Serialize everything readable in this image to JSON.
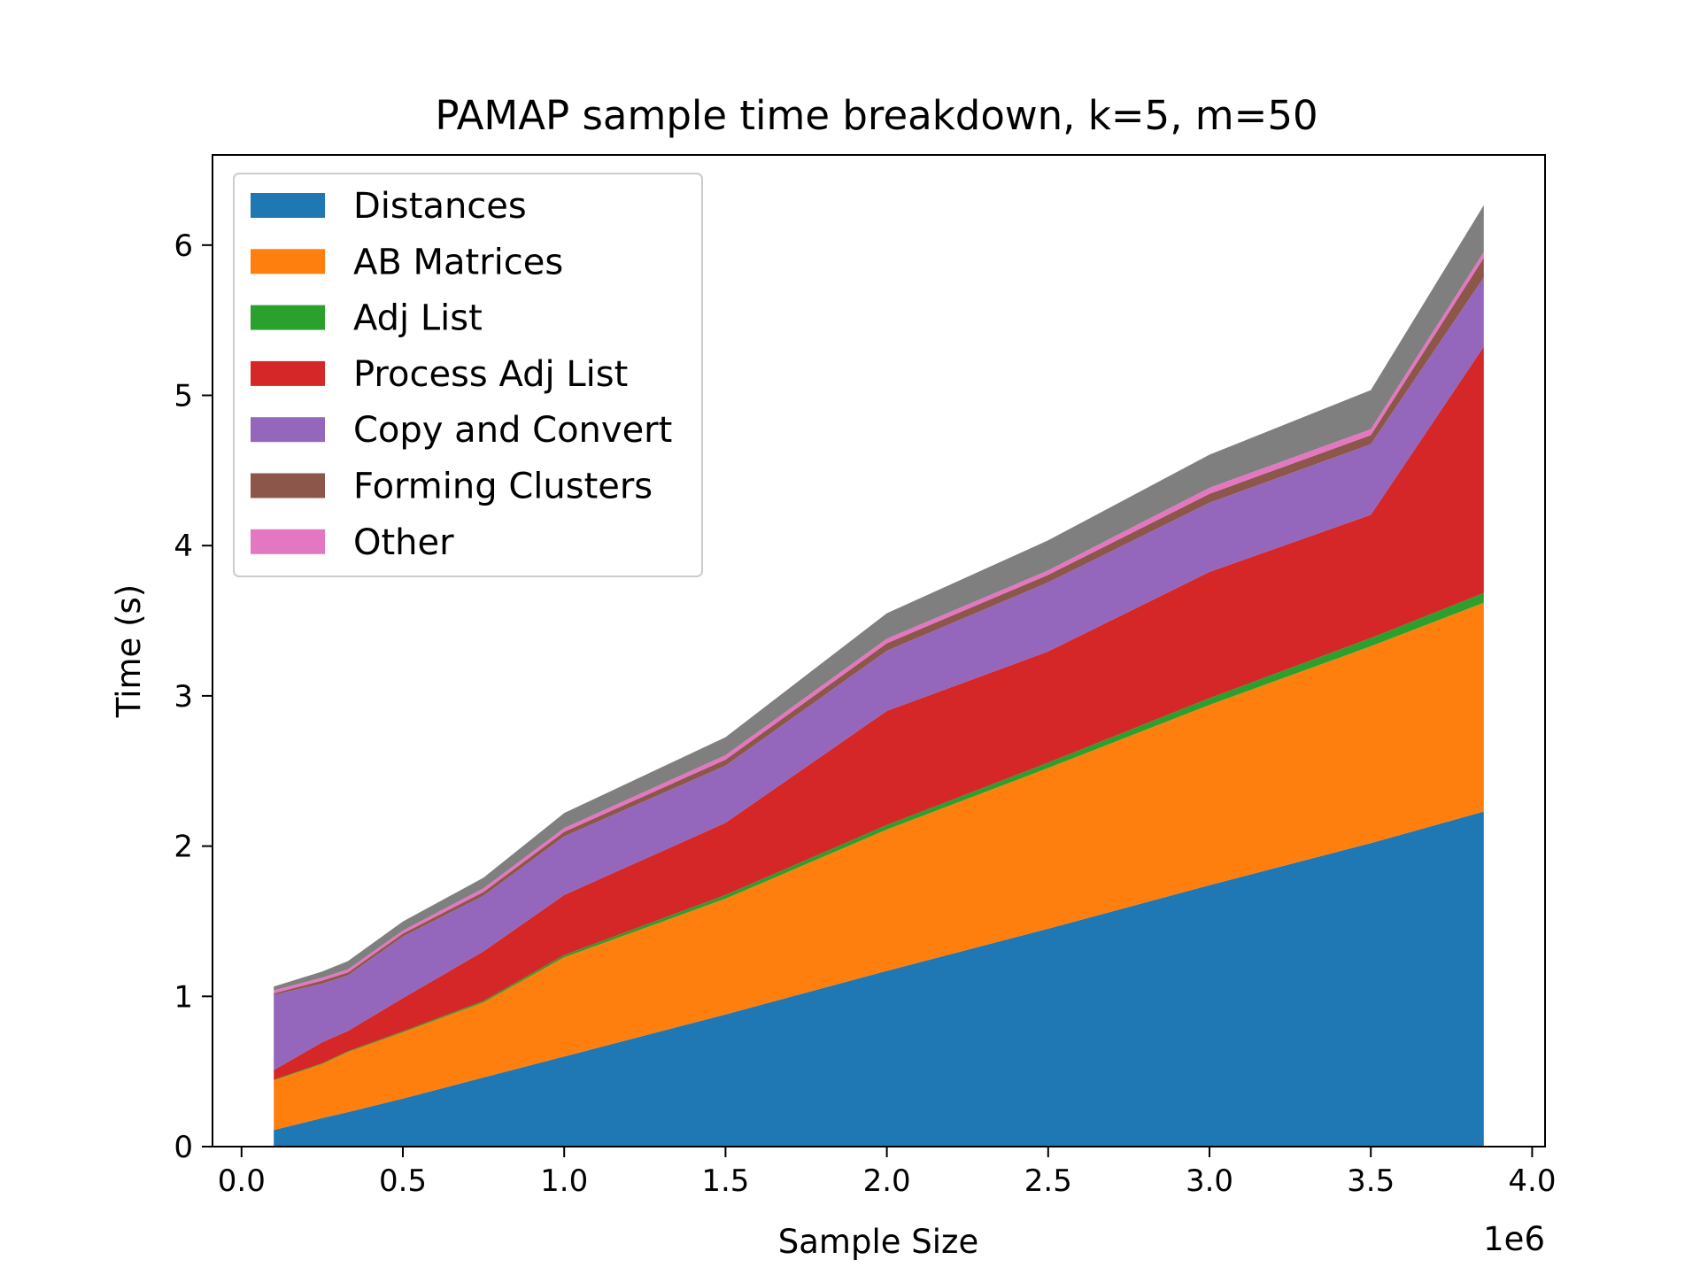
{
  "chart_data": {
    "type": "area",
    "stacked": true,
    "title": "PAMAP sample time breakdown, k=5, m=50",
    "xlabel": "Sample Size",
    "ylabel": "Time (s)",
    "x_offset_label": "1e6",
    "xlim": [
      -0.09,
      4.04
    ],
    "ylim": [
      0,
      6.6
    ],
    "xticks": [
      0.0,
      0.5,
      1.0,
      1.5,
      2.0,
      2.5,
      3.0,
      3.5,
      4.0
    ],
    "xtick_labels": [
      "0.0",
      "0.5",
      "1.0",
      "1.5",
      "2.0",
      "2.5",
      "3.0",
      "3.5",
      "4.0"
    ],
    "yticks": [
      0,
      1,
      2,
      3,
      4,
      5,
      6
    ],
    "ytick_labels": [
      "0",
      "1",
      "2",
      "3",
      "4",
      "5",
      "6"
    ],
    "grid": false,
    "legend_position": "upper-left",
    "x": [
      0.1,
      0.25,
      0.33,
      0.5,
      0.75,
      1.0,
      1.5,
      2.0,
      2.5,
      3.0,
      3.5,
      3.85
    ],
    "series": [
      {
        "name": "Distances",
        "color": "#1f77b4",
        "values": [
          0.11,
          0.19,
          0.23,
          0.32,
          0.46,
          0.6,
          0.88,
          1.17,
          1.45,
          1.74,
          2.02,
          2.23
        ]
      },
      {
        "name": "AB Matrices",
        "color": "#ff7f0e",
        "values": [
          0.33,
          0.36,
          0.4,
          0.44,
          0.5,
          0.66,
          0.77,
          0.94,
          1.07,
          1.2,
          1.31,
          1.39
        ]
      },
      {
        "name": "Adj List",
        "color": "#2ca02c",
        "values": [
          0.005,
          0.005,
          0.005,
          0.008,
          0.01,
          0.015,
          0.025,
          0.03,
          0.035,
          0.045,
          0.055,
          0.065
        ]
      },
      {
        "name": "Process Adj List",
        "color": "#d62728",
        "values": [
          0.065,
          0.14,
          0.135,
          0.22,
          0.33,
          0.4,
          0.48,
          0.76,
          0.74,
          0.84,
          0.82,
          1.64
        ]
      },
      {
        "name": "Copy and Convert",
        "color": "#9467bd",
        "values": [
          0.5,
          0.39,
          0.37,
          0.41,
          0.37,
          0.39,
          0.38,
          0.4,
          0.46,
          0.46,
          0.47,
          0.46
        ]
      },
      {
        "name": "Forming Clusters",
        "color": "#8c564b",
        "values": [
          0.01,
          0.02,
          0.02,
          0.02,
          0.025,
          0.03,
          0.04,
          0.05,
          0.05,
          0.06,
          0.06,
          0.13
        ]
      },
      {
        "name": "Other",
        "color": "#e377c2",
        "values": [
          0.02,
          0.02,
          0.02,
          0.02,
          0.025,
          0.025,
          0.03,
          0.03,
          0.03,
          0.04,
          0.04,
          0.04
        ]
      },
      {
        "color": "#7f7f7f",
        "values": [
          0.025,
          0.04,
          0.055,
          0.06,
          0.07,
          0.1,
          0.12,
          0.17,
          0.2,
          0.22,
          0.26,
          0.31
        ]
      }
    ]
  }
}
